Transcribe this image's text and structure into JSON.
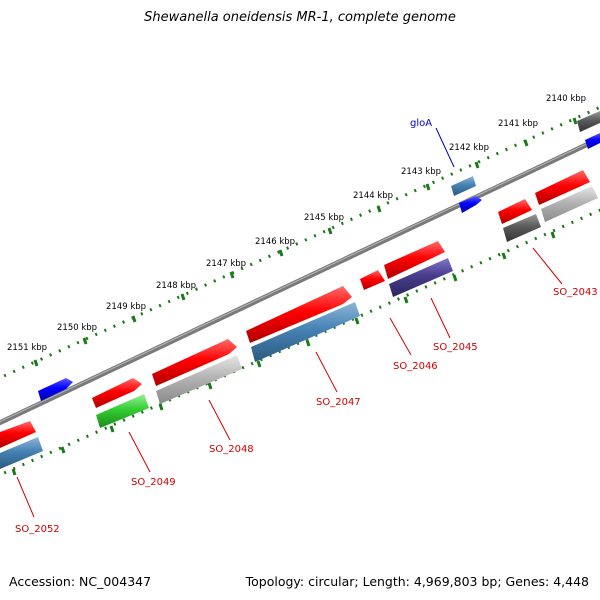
{
  "title": "Shewanella oneidensis MR-1, complete genome",
  "accession": "Accession: NC_004347",
  "summary": "Topology: circular; Length: 4,969,803 bp; Genes: 4,448",
  "colors": {
    "backbone": "#808080",
    "ticks": "#1a7a1a",
    "label_red": "#d40000",
    "label_blue": "#0000cc",
    "red": "#ff0000",
    "blue": "#0000ff",
    "steel": "#4682b4",
    "green": "#32cd32",
    "grey": "#b4b4b4",
    "darkgrey": "#5a5a5a",
    "purple": "#483d8b"
  },
  "kbp_labels": [
    {
      "name": "kbp-2151",
      "text": "2151 kbp"
    },
    {
      "name": "kbp-2150",
      "text": "2150 kbp"
    },
    {
      "name": "kbp-2149",
      "text": "2149 kbp"
    },
    {
      "name": "kbp-2148",
      "text": "2148 kbp"
    },
    {
      "name": "kbp-2147",
      "text": "2147 kbp"
    },
    {
      "name": "kbp-2146",
      "text": "2146 kbp"
    },
    {
      "name": "kbp-2145",
      "text": "2145 kbp"
    },
    {
      "name": "kbp-2144",
      "text": "2144 kbp"
    },
    {
      "name": "kbp-2143",
      "text": "2143 kbp"
    },
    {
      "name": "kbp-2142",
      "text": "2142 kbp"
    },
    {
      "name": "kbp-2141",
      "text": "2141 kbp"
    },
    {
      "name": "kbp-2140",
      "text": "2140 kbp"
    }
  ],
  "gene_labels": [
    {
      "name": "gene-label-so2052",
      "text": "SO_2052",
      "color": "red"
    },
    {
      "name": "gene-label-so2049",
      "text": "SO_2049",
      "color": "red"
    },
    {
      "name": "gene-label-so2048",
      "text": "SO_2048",
      "color": "red"
    },
    {
      "name": "gene-label-so2047",
      "text": "SO_2047",
      "color": "red"
    },
    {
      "name": "gene-label-so2046",
      "text": "SO_2046",
      "color": "red"
    },
    {
      "name": "gene-label-so2045",
      "text": "SO_2045",
      "color": "red"
    },
    {
      "name": "gene-label-so2043",
      "text": "SO_2043",
      "color": "red"
    },
    {
      "name": "gene-label-gloa",
      "text": "gloA",
      "color": "blue"
    }
  ]
}
